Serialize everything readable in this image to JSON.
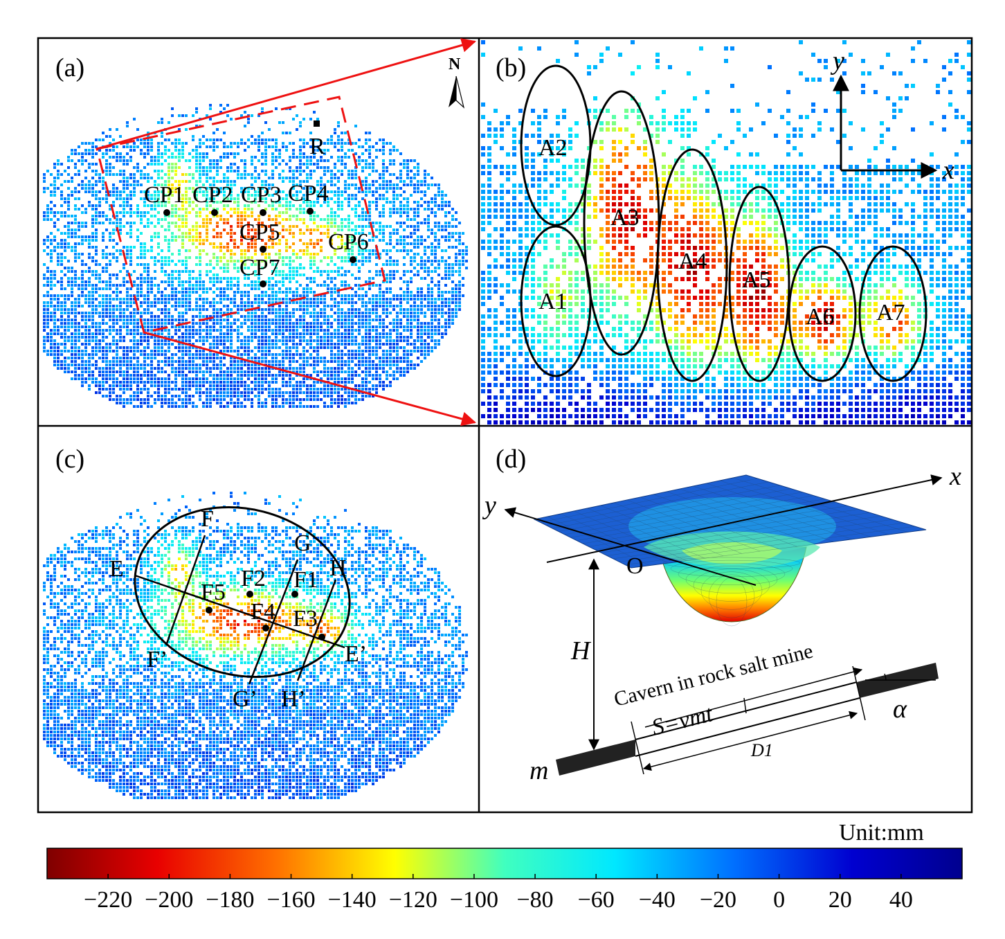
{
  "panels": {
    "a": {
      "label": "(a)",
      "north": "N",
      "reference": "R",
      "points": [
        "CP1",
        "CP2",
        "CP3",
        "CP4",
        "CP5",
        "CP6",
        "CP7"
      ]
    },
    "b": {
      "label": "(b)",
      "axis_x": "x",
      "axis_y": "y",
      "areas": [
        "A1",
        "A2",
        "A3",
        "A4",
        "A5",
        "A6",
        "A7"
      ]
    },
    "c": {
      "label": "(c)",
      "profiles": {
        "E": "E",
        "E_prime": "E’",
        "F": "F",
        "F_prime": "F’",
        "G": "G",
        "G_prime": "G’",
        "H": "H",
        "H_prime": "H’"
      },
      "features": [
        "F1",
        "F2",
        "F3",
        "F4",
        "F5"
      ]
    },
    "d": {
      "label": "(d)",
      "axis_x": "x",
      "axis_y": "y",
      "origin": "O",
      "depth": "H",
      "cavern": "Cavern in rock salt mine",
      "advance": "S=vmt",
      "length": "D1",
      "thickness": "m",
      "dip": "α"
    }
  },
  "colorbar": {
    "unit": "Unit:mm",
    "ticks": [
      "−220",
      "−200",
      "−180",
      "−160",
      "−140",
      "−120",
      "−100",
      "−80",
      "−60",
      "−40",
      "−20",
      "0",
      "20",
      "40"
    ],
    "range": [
      -240,
      60
    ],
    "colors": [
      "#7f0000",
      "#e80000",
      "#ff7000",
      "#ffff00",
      "#40ffbf",
      "#00e8ff",
      "#0070ff",
      "#0000d0",
      "#00008f"
    ]
  }
}
